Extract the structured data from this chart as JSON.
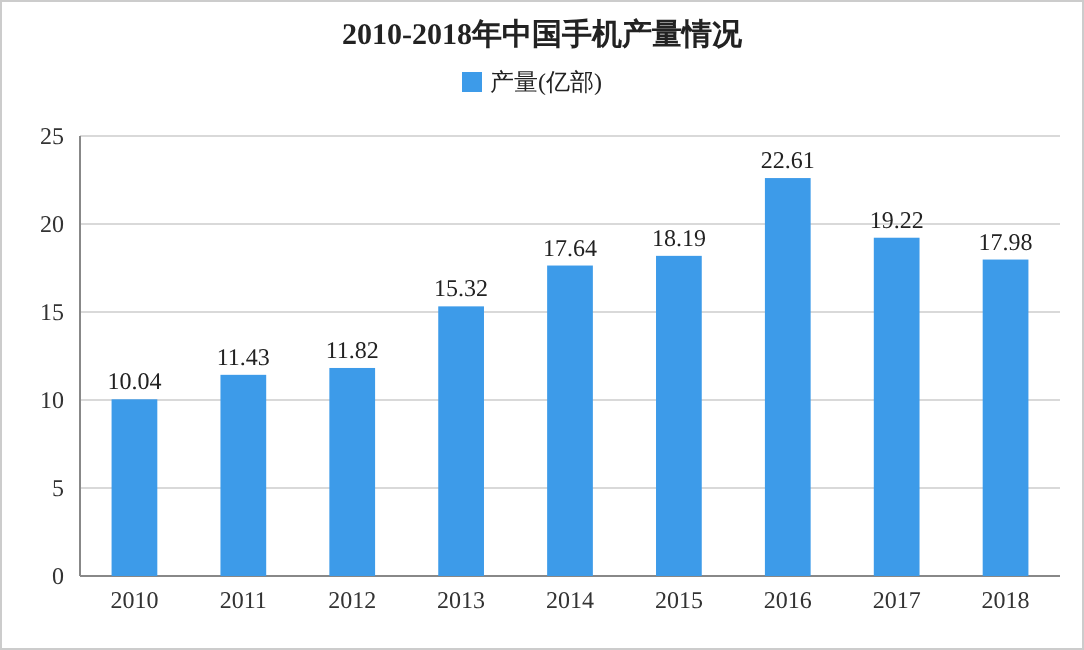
{
  "chart_data": {
    "type": "bar",
    "title": "2010-2018年中国手机产量情况",
    "categories": [
      "2010",
      "2011",
      "2012",
      "2013",
      "2014",
      "2015",
      "2016",
      "2017",
      "2018"
    ],
    "series": [
      {
        "name": "产量(亿部)",
        "color": "#3d9be9",
        "values": [
          10.04,
          11.43,
          11.82,
          15.32,
          17.64,
          18.19,
          22.61,
          19.22,
          17.98
        ]
      }
    ],
    "ylim": [
      0,
      25
    ],
    "yticks": [
      0,
      5,
      10,
      15,
      20,
      25
    ],
    "grid": "y",
    "legend": "top",
    "data_labels": true
  }
}
